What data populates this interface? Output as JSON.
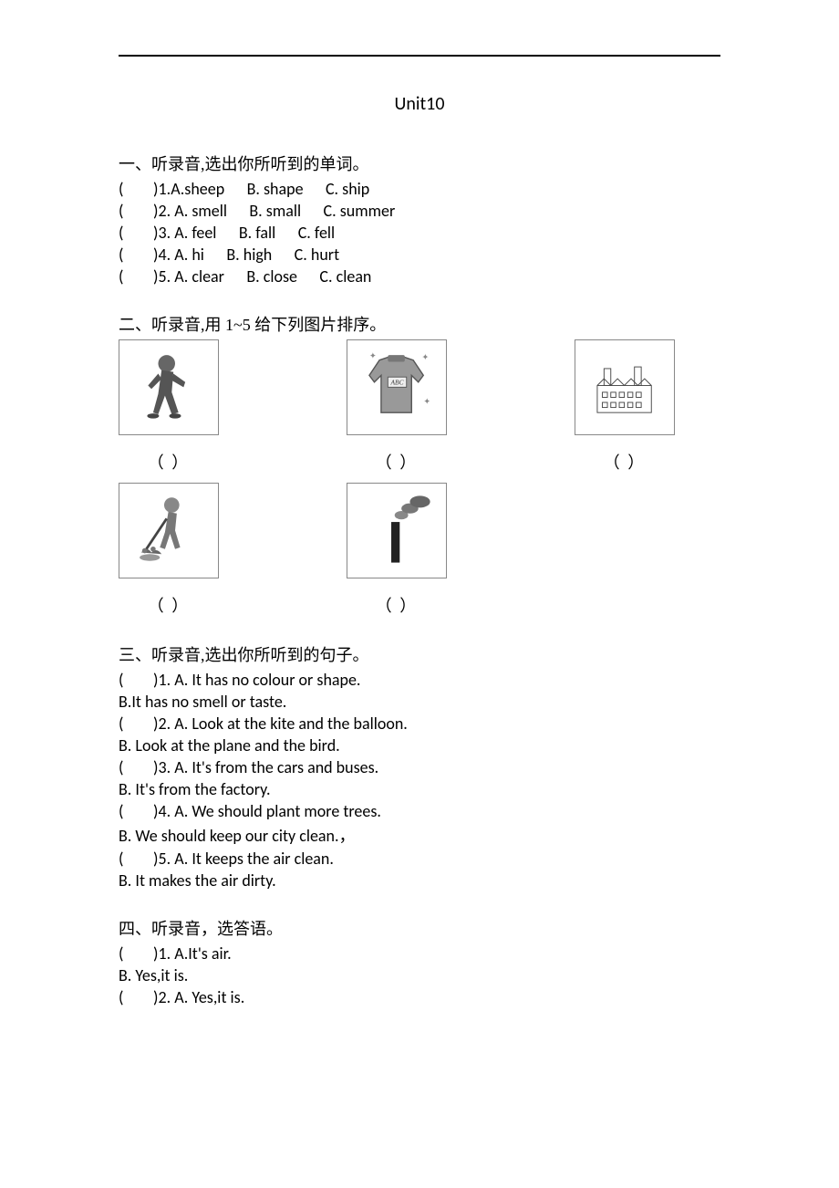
{
  "title": "Unit10",
  "section1": {
    "heading": "一、听录音,选出你所听到的单词。",
    "questions": [
      {
        "num": "1",
        "opts": [
          "A.sheep",
          "B. shape",
          "C. ship"
        ]
      },
      {
        "num": "2",
        "opts": [
          "A. smell",
          "B. small",
          "C. summer"
        ]
      },
      {
        "num": "3",
        "opts": [
          "A. feel",
          "B. fall",
          "C. fell"
        ]
      },
      {
        "num": "4",
        "opts": [
          "A. hi",
          "B. high",
          "C. hurt"
        ]
      },
      {
        "num": "5",
        "opts": [
          "A. clear",
          "B. close",
          "C. clean"
        ]
      }
    ]
  },
  "section2": {
    "heading": "二、听录音,用 1~5 给下列图片排序。",
    "paren": "（        ）"
  },
  "section3": {
    "heading": "三、听录音,选出你所听到的句子。",
    "questions": [
      {
        "num": "1",
        "a": "A. It has no colour or shape.",
        "b": "B.It has no smell or taste."
      },
      {
        "num": "2",
        "a": "A. Look at the kite and the balloon.",
        "b": "B. Look at the plane and the bird."
      },
      {
        "num": "3",
        "a": "A. It's from the cars and buses.",
        "b": "B. It's from the factory."
      },
      {
        "num": "4",
        "a": "A. We should plant more trees.",
        "b": "B. We should keep our city clean.，"
      },
      {
        "num": "5",
        "a": "A. It keeps the air clean.",
        "b": "B. It makes the air dirty."
      }
    ]
  },
  "section4": {
    "heading": "四、听录音，选答语。",
    "questions": [
      {
        "num": "1",
        "a": "A.It's air.",
        "b": "B. Yes,it is."
      },
      {
        "num": "2",
        "a": "A. Yes,it is."
      }
    ]
  },
  "paren_blank": "(        )"
}
